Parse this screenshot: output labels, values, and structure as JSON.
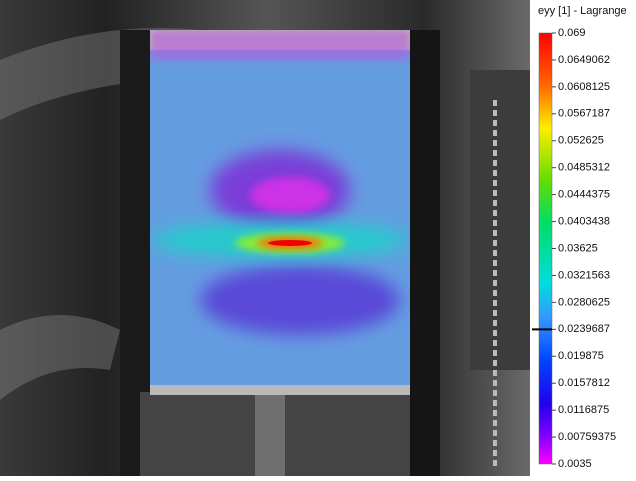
{
  "colorbar": {
    "title": "eyy [1] - Lagrange",
    "range": [
      0.0035,
      0.069
    ],
    "ticks": [
      0.069,
      0.0649062,
      0.0608125,
      0.0567187,
      0.052625,
      0.0485312,
      0.0444375,
      0.0403438,
      0.03625,
      0.0321563,
      0.0280625,
      0.0239687,
      0.019875,
      0.0157812,
      0.0116875,
      0.00759375,
      0.0035
    ],
    "marker": 0.0239687
  }
}
